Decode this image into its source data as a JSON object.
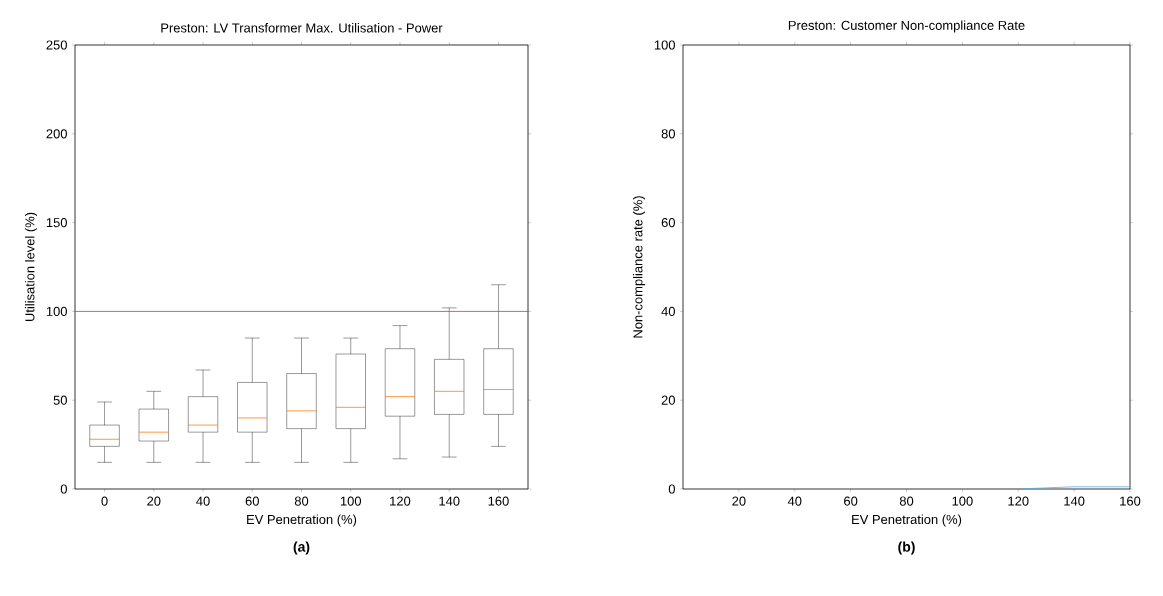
{
  "chart_data": [
    {
      "type": "box",
      "title": "Preston: LV Transformer Max. Utilisation - Power",
      "xlabel": "EV Penetration (%)",
      "ylabel": "Utilisation level (%)",
      "categories": [
        "0",
        "20",
        "40",
        "60",
        "80",
        "100",
        "120",
        "140",
        "160"
      ],
      "boxes": [
        {
          "low": 15,
          "q1": 24,
          "median": 28,
          "q3": 36,
          "high": 49
        },
        {
          "low": 15,
          "q1": 27,
          "median": 32,
          "q3": 45,
          "high": 55
        },
        {
          "low": 15,
          "q1": 32,
          "median": 36,
          "q3": 52,
          "high": 67
        },
        {
          "low": 15,
          "q1": 32,
          "median": 40,
          "q3": 60,
          "high": 85
        },
        {
          "low": 15,
          "q1": 34,
          "median": 44,
          "q3": 65,
          "high": 85
        },
        {
          "low": 15,
          "q1": 34,
          "median": 46,
          "q3": 76,
          "high": 85
        },
        {
          "low": 17,
          "q1": 41,
          "median": 52,
          "q3": 79,
          "high": 92
        },
        {
          "low": 18,
          "q1": 42,
          "median": 55,
          "q3": 73,
          "high": 102
        },
        {
          "low": 24,
          "q1": 42,
          "median": 56,
          "q3": 79,
          "high": 115
        }
      ],
      "color": "#000000",
      "ylim": [
        0,
        250
      ],
      "yticks": [
        0,
        50,
        100,
        150,
        200,
        250
      ],
      "ref_lines": [
        {
          "axis": "y",
          "value": 100,
          "color": "#e0303a"
        }
      ],
      "annotations": [
        "(a)"
      ]
    },
    {
      "type": "line",
      "title": "Preston: Customer Non-compliance Rate",
      "xlabel": "EV Penetration (%)",
      "ylabel": "Non-compliance rate (%)",
      "x": [
        120,
        140,
        160
      ],
      "series": [
        {
          "color": "#5aa9e6",
          "values": [
            0,
            0.5,
            0.5
          ]
        }
      ],
      "xlim": [
        0,
        160
      ],
      "xticks": [
        20,
        40,
        60,
        80,
        100,
        120,
        140,
        160
      ],
      "ylim": [
        0,
        100
      ],
      "yticks": [
        0,
        20,
        40,
        60,
        80,
        100
      ],
      "annotations": [
        "(b)"
      ]
    }
  ]
}
